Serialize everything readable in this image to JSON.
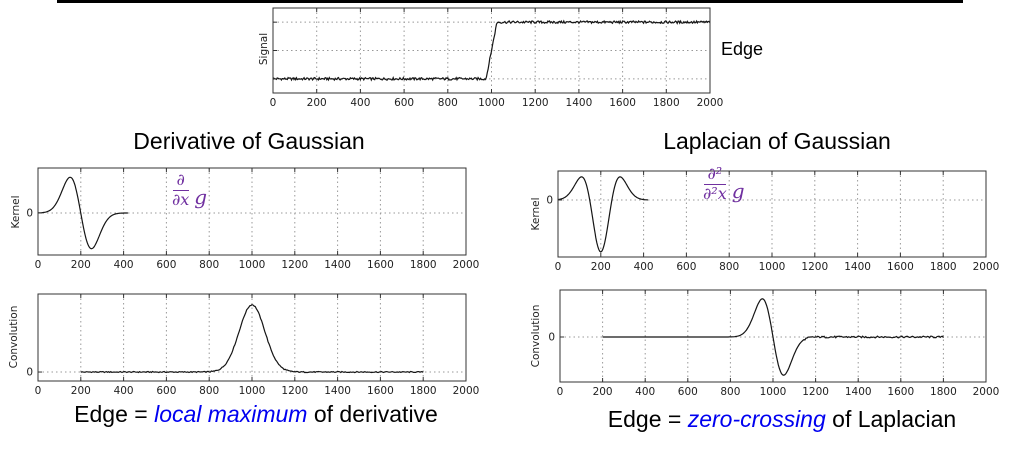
{
  "slide": {
    "edge_annotation": "Edge",
    "left": {
      "title": "Derivative of Gaussian",
      "formula": {
        "numerator": "∂",
        "denominator": "∂x",
        "operand": "g"
      },
      "caption_prefix": "Edge = ",
      "caption_highlight": "local maximum",
      "caption_suffix": " of derivative"
    },
    "right": {
      "title": "Laplacian of Gaussian",
      "formula": {
        "numerator": "∂²",
        "denominator": "∂²x",
        "operand": "g"
      },
      "caption_prefix": "Edge = ",
      "caption_highlight": "zero-crossing",
      "caption_suffix": " of Laplacian"
    },
    "colors": {
      "formula_purple": "#7030A0",
      "caption_blue": "#0000F0",
      "curve": "#151515",
      "grid": "#999999",
      "axis_box": "#333333"
    }
  },
  "chart_data": [
    {
      "id": "signal",
      "type": "line",
      "title": "",
      "xlabel": "",
      "ylabel": "Signal",
      "xlim": [
        0,
        2000
      ],
      "xticks": [
        0,
        200,
        400,
        600,
        800,
        1000,
        1200,
        1400,
        1600,
        1800,
        2000
      ],
      "ylim": [
        -0.25,
        1.25
      ],
      "ygrid": [
        0,
        0.5,
        1
      ],
      "yticks": [],
      "grid": true,
      "series": [
        {
          "name": "noisy step edge signal",
          "kind": "step",
          "x_range": [
            0,
            2000
          ],
          "step_at": 1000,
          "rise_halfwidth": 25,
          "low": 0,
          "high": 1,
          "noise": 0.022,
          "samples": 520
        }
      ],
      "description": "1D noisy signal: value 0 for x<975, rising to 1 near x=1000, value 1 for x>1025"
    },
    {
      "id": "kernel_dog",
      "type": "line",
      "title": "",
      "xlabel": "",
      "ylabel": "Kernel",
      "xlim": [
        0,
        2000
      ],
      "xticks": [
        0,
        200,
        400,
        600,
        800,
        1000,
        1200,
        1400,
        1600,
        1800,
        2000
      ],
      "ylim": [
        -1.0,
        1.07
      ],
      "ygrid": [
        0
      ],
      "yticks": [
        {
          "value": 0,
          "label": "0"
        }
      ],
      "grid": true,
      "series": [
        {
          "name": "derivative of Gaussian kernel",
          "kind": "gaussian_derivative",
          "center": 200,
          "sigma": 50,
          "amplitude": 0.85,
          "x_range": [
            0,
            420
          ],
          "samples": 150
        }
      ],
      "description": "d/dx Gaussian: positive lobe peaking at x=150, zero at x=200, negative lobe at x=250, zero outside 0-400"
    },
    {
      "id": "conv_dog",
      "type": "line",
      "title": "",
      "xlabel": "",
      "ylabel": "Convolution",
      "xlim": [
        0,
        2000
      ],
      "xticks": [
        0,
        200,
        400,
        600,
        800,
        1000,
        1200,
        1400,
        1600,
        1800,
        2000
      ],
      "ylim": [
        -0.1,
        0.87
      ],
      "ygrid": [
        0
      ],
      "yticks": [
        {
          "value": 0,
          "label": "0"
        }
      ],
      "grid": true,
      "series": [
        {
          "name": "signal convolved with derivative of Gaussian",
          "kind": "gaussian",
          "center": 1000,
          "sigma": 60,
          "amplitude": 0.75,
          "x_range": [
            200,
            1800
          ],
          "samples": 320,
          "noise": 0.006
        }
      ],
      "description": "Gaussian bump with local maximum at x=1000 (edge location), flat near zero elsewhere over 200-1800"
    },
    {
      "id": "kernel_log",
      "type": "line",
      "title": "",
      "xlabel": "",
      "ylabel": "Kernel",
      "xlim": [
        0,
        2000
      ],
      "xticks": [
        0,
        200,
        400,
        600,
        800,
        1000,
        1200,
        1400,
        1600,
        1800,
        2000
      ],
      "ylim": [
        -1.1,
        0.56
      ],
      "ygrid": [
        0
      ],
      "yticks": [
        {
          "value": 0,
          "label": "0"
        }
      ],
      "grid": true,
      "series": [
        {
          "name": "Laplacian of Gaussian kernel",
          "kind": "laplacian_of_gaussian",
          "center": 200,
          "sigma": 52,
          "amplitude": 1.0,
          "x_range": [
            0,
            420
          ],
          "samples": 150
        }
      ],
      "description": "Second derivative of Gaussian: positive side lobes at x=110 and x=290, deep central trough at x=200"
    },
    {
      "id": "conv_log",
      "type": "line",
      "title": "",
      "xlabel": "",
      "ylabel": "Convolution",
      "xlim": [
        0,
        2000
      ],
      "xticks": [
        0,
        200,
        400,
        600,
        800,
        1000,
        1200,
        1400,
        1600,
        1800,
        2000
      ],
      "ylim": [
        -1.12,
        1.17
      ],
      "ygrid": [
        0
      ],
      "yticks": [
        {
          "value": 0,
          "label": "0"
        }
      ],
      "grid": true,
      "series": [
        {
          "name": "signal convolved with Laplacian of Gaussian",
          "kind": "gaussian_derivative",
          "center": 1000,
          "sigma": 50,
          "amplitude": 0.95,
          "x_range": [
            200,
            1800
          ],
          "samples": 320,
          "noise": 0.022,
          "noise_after": 1150
        }
      ],
      "description": "Positive lobe peaking at x=950, zero-crossing at x=1000 (edge location), negative lobe at x=1050, near zero elsewhere"
    }
  ]
}
